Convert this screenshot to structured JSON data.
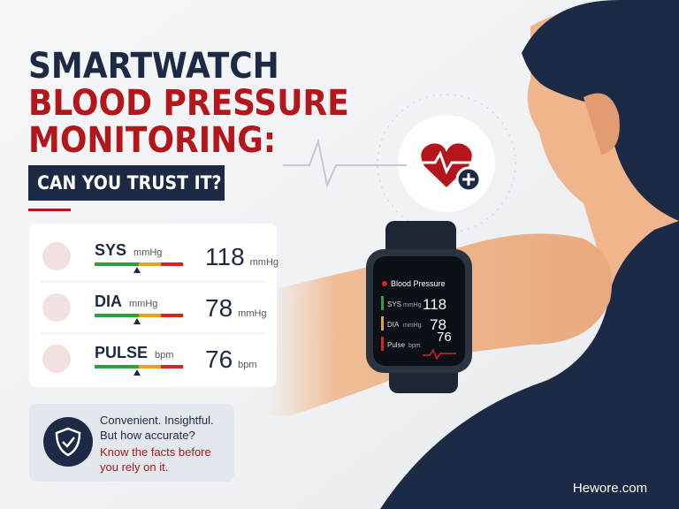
{
  "title": {
    "line1": "SMARTWATCH",
    "line2": "BLOOD PRESSURE",
    "line3": "MONITORING:",
    "badge": "CAN YOU TRUST IT?"
  },
  "readings": [
    {
      "label": "SYS",
      "unit": "mmHg",
      "value": 118,
      "value_unit": "mmHg"
    },
    {
      "label": "DIA",
      "unit": "mmHg",
      "value": 78,
      "value_unit": "mmHg"
    },
    {
      "label": "PULSE",
      "unit": "bpm",
      "value": 76,
      "value_unit": "bpm"
    }
  ],
  "callout": {
    "line1": "Convenient. Insightful.",
    "line2": "But how accurate?",
    "line3": "Know the facts before",
    "line4": "you rely on it."
  },
  "watch": {
    "title": "Blood Pressure",
    "rows": [
      {
        "label": "SYS",
        "unit": "mmHg",
        "value": 118
      },
      {
        "label": "DIA",
        "unit": "mmHg",
        "value": 78
      },
      {
        "label": "Pulse",
        "unit": "bpm",
        "value": 76
      }
    ]
  },
  "brand": "Hewore.com"
}
